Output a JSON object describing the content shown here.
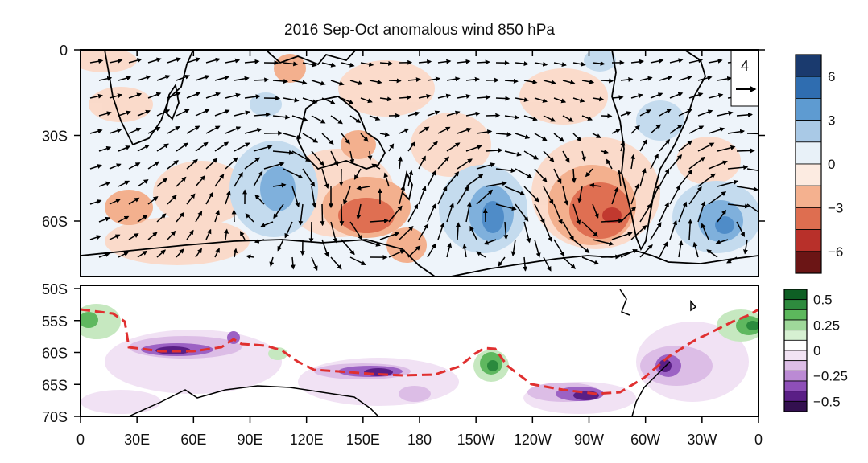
{
  "title": "2016 Sep-Oct anomalous wind 850 hPa",
  "top_panel": {
    "lat_ticks": [
      "0",
      "30S",
      "60S"
    ],
    "ref_vector_label": "4",
    "colorbar": {
      "colors": [
        "#1a3a6e",
        "#2f6db0",
        "#5e9bd1",
        "#a9c9e6",
        "#e8f1f8",
        "#fcebe1",
        "#f4b18f",
        "#de6e50",
        "#b8302a",
        "#6b1515"
      ],
      "labels": [
        "6",
        "3",
        "0",
        "−3",
        "−6"
      ]
    }
  },
  "bottom_panel": {
    "lat_ticks": [
      "50S",
      "55S",
      "60S",
      "65S",
      "70S"
    ],
    "colorbar": {
      "colors": [
        "#0e5f24",
        "#2e8b3e",
        "#5cb85c",
        "#9fd89a",
        "#d6f0d2",
        "#ffffff",
        "#f2e3f4",
        "#dcbde6",
        "#bb8ad4",
        "#8e4fb8",
        "#5a1f86",
        "#33104f"
      ],
      "labels": [
        "0.5",
        "0.25",
        "0",
        "−0.25",
        "−0.5"
      ]
    }
  },
  "lon_ticks": [
    "0",
    "30E",
    "60E",
    "90E",
    "120E",
    "150E",
    "180",
    "150W",
    "120W",
    "90W",
    "60W",
    "30W",
    "0"
  ]
}
